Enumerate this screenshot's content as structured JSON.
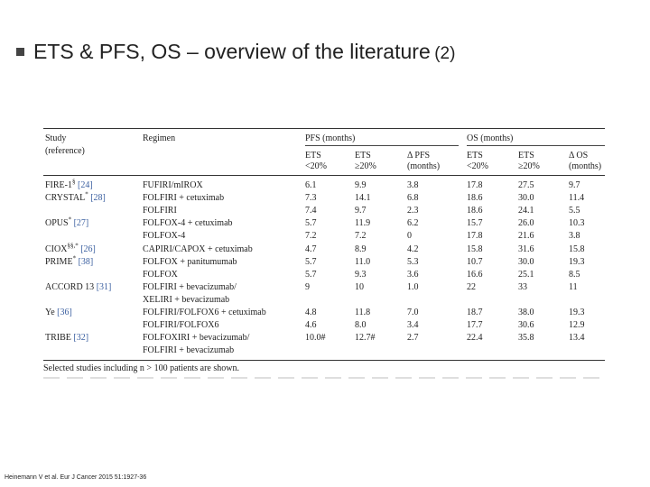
{
  "slide": {
    "title_main": "ETS & PFS, OS – overview of the literature",
    "title_sub": "(2)",
    "citation": "Heinemann V et al. Eur J Cancer 2015 51:1927-36"
  },
  "table": {
    "group_headers": {
      "pfs": "PFS (months)",
      "os": "OS (months)"
    },
    "headers": {
      "study": "Study",
      "study2": "(reference)",
      "regimen": "Regimen",
      "pfs_lt_1": "ETS",
      "pfs_lt_2": "<20%",
      "pfs_ge_1": "ETS",
      "pfs_ge_2": "≥20%",
      "pfs_d_1": "Δ PFS",
      "pfs_d_2": "(months)",
      "os_lt_1": "ETS",
      "os_lt_2": "<20%",
      "os_ge_1": "ETS",
      "os_ge_2": "≥20%",
      "os_d_1": "Δ OS",
      "os_d_2": "(months)"
    },
    "rows": [
      {
        "study": "FIRE-1",
        "sup": "§",
        "ref": "[24]",
        "regimen": "FUFIRI/mIROX",
        "pfs_lt": "6.1",
        "pfs_ge": "9.9",
        "pfs_d": "3.8",
        "os_lt": "17.8",
        "os_ge": "27.5",
        "os_d": "9.7"
      },
      {
        "study": "CRYSTAL",
        "sup": "*",
        "ref": "[28]",
        "regimen": "FOLFIRI + cetuximab",
        "pfs_lt": "7.3",
        "pfs_ge": "14.1",
        "pfs_d": "6.8",
        "os_lt": "18.6",
        "os_ge": "30.0",
        "os_d": "11.4"
      },
      {
        "study": "",
        "sup": "",
        "ref": "",
        "regimen": "FOLFIRI",
        "pfs_lt": "7.4",
        "pfs_ge": "9.7",
        "pfs_d": "2.3",
        "os_lt": "18.6",
        "os_ge": "24.1",
        "os_d": "5.5"
      },
      {
        "study": "OPUS",
        "sup": "*",
        "ref": "[27]",
        "regimen": "FOLFOX-4 + cetuximab",
        "pfs_lt": "5.7",
        "pfs_ge": "11.9",
        "pfs_d": "6.2",
        "os_lt": "15.7",
        "os_ge": "26.0",
        "os_d": "10.3"
      },
      {
        "study": "",
        "sup": "",
        "ref": "",
        "regimen": "FOLFOX-4",
        "pfs_lt": "7.2",
        "pfs_ge": "7.2",
        "pfs_d": "0",
        "os_lt": "17.8",
        "os_ge": "21.6",
        "os_d": "3.8"
      },
      {
        "study": "CIOX",
        "sup": "§§,*",
        "ref": "[26]",
        "regimen": "CAPIRI/CAPOX + cetuximab",
        "pfs_lt": "4.7",
        "pfs_ge": "8.9",
        "pfs_d": "4.2",
        "os_lt": "15.8",
        "os_ge": "31.6",
        "os_d": "15.8"
      },
      {
        "study": "PRIME",
        "sup": "*",
        "ref": "[38]",
        "regimen": "FOLFOX + panitumumab",
        "pfs_lt": "5.7",
        "pfs_ge": "11.0",
        "pfs_d": "5.3",
        "os_lt": "10.7",
        "os_ge": "30.0",
        "os_d": "19.3"
      },
      {
        "study": "",
        "sup": "",
        "ref": "",
        "regimen": "FOLFOX",
        "pfs_lt": "5.7",
        "pfs_ge": "9.3",
        "pfs_d": "3.6",
        "os_lt": "16.6",
        "os_ge": "25.1",
        "os_d": "8.5"
      },
      {
        "study": "ACCORD 13",
        "sup": "",
        "ref": "[31]",
        "regimen": "FOLFIRI + bevacizumab/",
        "pfs_lt": "9",
        "pfs_ge": "10",
        "pfs_d": "1.0",
        "os_lt": "22",
        "os_ge": "33",
        "os_d": "11"
      },
      {
        "study": "",
        "sup": "",
        "ref": "",
        "regimen": "XELIRI + bevacizumab",
        "pfs_lt": "",
        "pfs_ge": "",
        "pfs_d": "",
        "os_lt": "",
        "os_ge": "",
        "os_d": ""
      },
      {
        "study": "Ye",
        "sup": "",
        "ref": "[36]",
        "regimen": "FOLFIRI/FOLFOX6 + cetuximab",
        "pfs_lt": "4.8",
        "pfs_ge": "11.8",
        "pfs_d": "7.0",
        "os_lt": "18.7",
        "os_ge": "38.0",
        "os_d": "19.3"
      },
      {
        "study": "",
        "sup": "",
        "ref": "",
        "regimen": "FOLFIRI/FOLFOX6",
        "pfs_lt": "4.6",
        "pfs_ge": "8.0",
        "pfs_d": "3.4",
        "os_lt": "17.7",
        "os_ge": "30.6",
        "os_d": "12.9"
      },
      {
        "study": "TRIBE",
        "sup": "",
        "ref": "[32]",
        "regimen": "FOLFOXIRI + bevacizumab/",
        "pfs_lt": "10.0#",
        "pfs_ge": "12.7#",
        "pfs_d": "2.7",
        "os_lt": "22.4",
        "os_ge": "35.8",
        "os_d": "13.4"
      },
      {
        "study": "",
        "sup": "",
        "ref": "",
        "regimen": "FOLFIRI + bevacizumab",
        "pfs_lt": "",
        "pfs_ge": "",
        "pfs_d": "",
        "os_lt": "",
        "os_ge": "",
        "os_d": ""
      }
    ],
    "footnote": "Selected studies including n > 100 patients are shown."
  }
}
